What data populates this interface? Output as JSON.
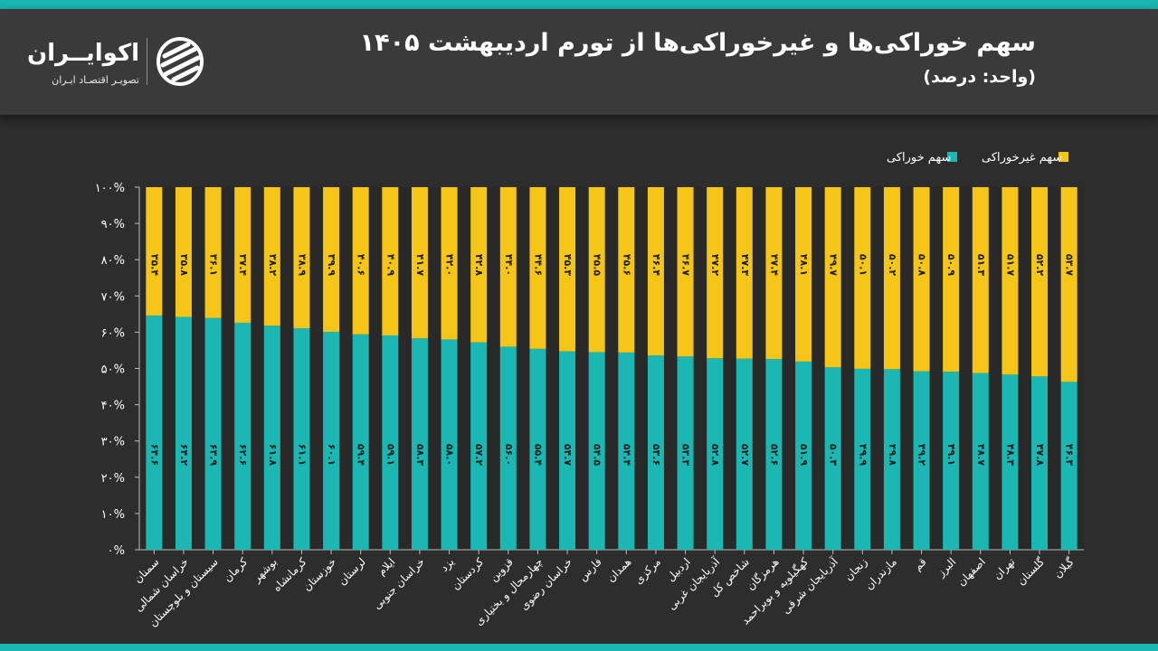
{
  "header": {
    "title": "سهم خوراکی‌ها و غیرخوراکی‌ها از تورم اردیبهشت ۱۴۰۵",
    "subtitle": "(واحد: درصد)"
  },
  "logo": {
    "name": "اکوایــران",
    "tagline": "تصویـر اقتصـاد ایـران",
    "icon": "ecoiran-logo-mark"
  },
  "colors": {
    "food": "#1ab7b3",
    "nonfood": "#f5c518",
    "background": "#2e2d2d",
    "header": "#3b3a3a",
    "accent_strip": "#1ab7b3"
  },
  "chart_data": {
    "type": "bar",
    "stacked": true,
    "percent": true,
    "legend_position": "top-right",
    "grid": false,
    "ylim": [
      0,
      100
    ],
    "yticks": [
      "۰%",
      "۱۰%",
      "۲۰%",
      "۳۰%",
      "۴۰%",
      "۵۰%",
      "۶۰%",
      "۷۰%",
      "۸۰%",
      "۹۰%",
      "۱۰۰%"
    ],
    "categories": [
      "سمنان",
      "خراسان شمالی",
      "سیستان و بلوچستان",
      "کرمان",
      "بوشهر",
      "کرمانشاه",
      "خوزستان",
      "لرستان",
      "ایلام",
      "خراسان جنوبی",
      "یزد",
      "کردستان",
      "قزوین",
      "چهارمحال و بختیاری",
      "خراسان رضوی",
      "فارس",
      "همدان",
      "مرکزی",
      "اردبیل",
      "آذربایجان غربی",
      "شاخص کل",
      "هرمزگان",
      "کهگیلویه و بویراحمد",
      "آذربایجان شرقی",
      "زنجان",
      "مازندران",
      "قم",
      "البرز",
      "اصفهان",
      "تهران",
      "گلستان",
      "گیلان"
    ],
    "series": [
      {
        "name": "سهم خوراکی",
        "values": [
          64.6,
          64.2,
          63.9,
          62.6,
          61.8,
          61.1,
          60.1,
          59.4,
          59.1,
          58.3,
          58.0,
          57.2,
          56.0,
          55.4,
          54.7,
          54.5,
          54.4,
          53.6,
          53.3,
          52.8,
          52.7,
          52.6,
          51.9,
          50.3,
          49.9,
          49.8,
          49.2,
          49.1,
          48.7,
          48.3,
          47.8,
          46.3
        ],
        "labels": [
          "۶۴.۶",
          "۶۴.۲",
          "۶۳.۹",
          "۶۲.۶",
          "۶۱.۸",
          "۶۱.۱",
          "۶۰.۱",
          "۵۹.۴",
          "۵۹.۱",
          "۵۸.۳",
          "۵۸.۰",
          "۵۷.۲",
          "۵۶.۰",
          "۵۵.۴",
          "۵۴.۷",
          "۵۴.۵",
          "۵۴.۴",
          "۵۳.۶",
          "۵۳.۳",
          "۵۲.۸",
          "۵۲.۷",
          "۵۲.۶",
          "۵۱.۹",
          "۵۰.۳",
          "۴۹.۹",
          "۴۹.۸",
          "۴۹.۲",
          "۴۹.۱",
          "۴۸.۷",
          "۴۸.۳",
          "۴۷.۸",
          "۴۶.۳"
        ]
      },
      {
        "name": "سهم غیرخوراکی",
        "values": [
          35.4,
          35.8,
          36.1,
          37.4,
          38.2,
          38.9,
          39.9,
          40.6,
          40.9,
          41.7,
          42.0,
          42.8,
          44.0,
          44.6,
          45.3,
          45.5,
          45.6,
          46.4,
          46.7,
          47.2,
          47.3,
          47.4,
          48.1,
          49.7,
          50.1,
          50.2,
          50.8,
          50.9,
          51.3,
          51.7,
          52.2,
          53.7
        ],
        "labels": [
          "۳۵.۴",
          "۳۵.۸",
          "۳۶.۱",
          "۳۷.۴",
          "۳۸.۲",
          "۳۸.۹",
          "۳۹.۹",
          "۴۰.۶",
          "۴۰.۹",
          "۴۱.۷",
          "۴۲.۰",
          "۴۲.۸",
          "۴۴.۰",
          "۴۴.۶",
          "۴۵.۳",
          "۴۵.۵",
          "۴۵.۶",
          "۴۶.۴",
          "۴۶.۷",
          "۴۷.۲",
          "۴۷.۳",
          "۴۷.۴",
          "۴۸.۱",
          "۴۹.۷",
          "۵۰.۱",
          "۵۰.۲",
          "۵۰.۸",
          "۵۰.۹",
          "۵۱.۳",
          "۵۱.۷",
          "۵۲.۲",
          "۵۳.۷"
        ]
      }
    ]
  }
}
